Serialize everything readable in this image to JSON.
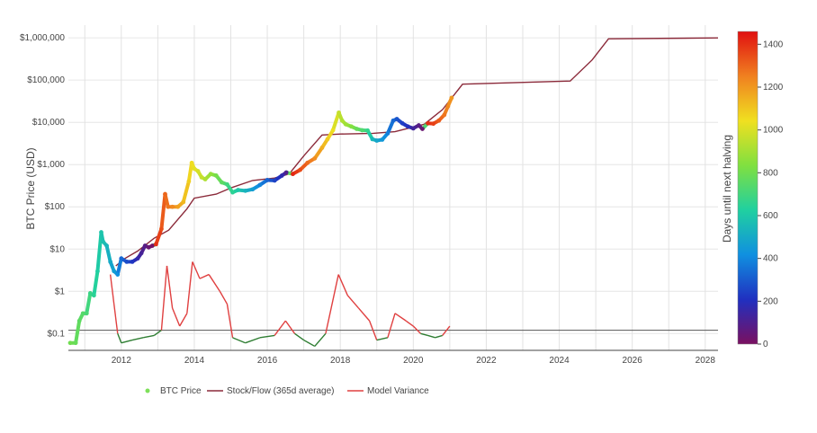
{
  "chart_data": {
    "type": "scatter",
    "title": "",
    "ylabel": "BTC Price (USD)",
    "xlabel": "",
    "y_scale": "log",
    "ylim": [
      0.04,
      2000000
    ],
    "xlim": [
      2010.55,
      2028.35
    ],
    "grid": true,
    "y_ticks": [
      {
        "value": 1000000,
        "label": "$1,000,000"
      },
      {
        "value": 100000,
        "label": "$100,000"
      },
      {
        "value": 10000,
        "label": "$10,000"
      },
      {
        "value": 1000,
        "label": "$1,000"
      },
      {
        "value": 100,
        "label": "$100"
      },
      {
        "value": 10,
        "label": "$10"
      },
      {
        "value": 1,
        "label": "$1"
      },
      {
        "value": 0.1,
        "label": "$0.1"
      }
    ],
    "x_ticks": [
      {
        "value": 2012,
        "label": "2012"
      },
      {
        "value": 2014,
        "label": "2014"
      },
      {
        "value": 2016,
        "label": "2016"
      },
      {
        "value": 2018,
        "label": "2018"
      },
      {
        "value": 2020,
        "label": "2020"
      },
      {
        "value": 2022,
        "label": "2022"
      },
      {
        "value": 2024,
        "label": "2024"
      },
      {
        "value": 2026,
        "label": "2026"
      },
      {
        "value": 2028,
        "label": "2028"
      }
    ],
    "legend_position": "bottom",
    "legend": [
      {
        "name": "BTC Price",
        "marker": "dot",
        "color": "#7ee05a"
      },
      {
        "name": "Stock/Flow (365d average)",
        "marker": "line",
        "color": "#8b2a3a"
      },
      {
        "name": "Model Variance",
        "marker": "line",
        "color": "#e04040"
      }
    ],
    "colorbar": {
      "title": "Days until next halving",
      "range": [
        0,
        1460
      ],
      "ticks": [
        {
          "value": 0,
          "label": "0"
        },
        {
          "value": 200,
          "label": "200"
        },
        {
          "value": 400,
          "label": "400"
        },
        {
          "value": 600,
          "label": "600"
        },
        {
          "value": 800,
          "label": "800"
        },
        {
          "value": 1000,
          "label": "1000"
        },
        {
          "value": 1200,
          "label": "1200"
        },
        {
          "value": 1400,
          "label": "1400"
        }
      ],
      "colorscale": [
        "#7a1060",
        "#2030c0",
        "#1090e0",
        "#20d0a0",
        "#80e040",
        "#f0e020",
        "#f08020",
        "#e01010"
      ]
    },
    "series": [
      {
        "name": "BTC Price",
        "color_by": "days_until_next_halving",
        "points": [
          {
            "x": 2010.6,
            "y": 0.06,
            "c": 800
          },
          {
            "x": 2010.75,
            "y": 0.06,
            "c": 780
          },
          {
            "x": 2010.85,
            "y": 0.2,
            "c": 760
          },
          {
            "x": 2010.95,
            "y": 0.3,
            "c": 740
          },
          {
            "x": 2011.05,
            "y": 0.3,
            "c": 720
          },
          {
            "x": 2011.15,
            "y": 0.9,
            "c": 680
          },
          {
            "x": 2011.25,
            "y": 0.8,
            "c": 650
          },
          {
            "x": 2011.35,
            "y": 3,
            "c": 620
          },
          {
            "x": 2011.45,
            "y": 25,
            "c": 590
          },
          {
            "x": 2011.5,
            "y": 15,
            "c": 570
          },
          {
            "x": 2011.6,
            "y": 12,
            "c": 540
          },
          {
            "x": 2011.7,
            "y": 5,
            "c": 500
          },
          {
            "x": 2011.8,
            "y": 3,
            "c": 460
          },
          {
            "x": 2011.9,
            "y": 2.5,
            "c": 420
          },
          {
            "x": 2012.0,
            "y": 6,
            "c": 330
          },
          {
            "x": 2012.15,
            "y": 5,
            "c": 270
          },
          {
            "x": 2012.3,
            "y": 5,
            "c": 220
          },
          {
            "x": 2012.45,
            "y": 6,
            "c": 160
          },
          {
            "x": 2012.55,
            "y": 8,
            "c": 120
          },
          {
            "x": 2012.65,
            "y": 12,
            "c": 80
          },
          {
            "x": 2012.75,
            "y": 11,
            "c": 40
          },
          {
            "x": 2012.85,
            "y": 12,
            "c": 10
          },
          {
            "x": 2012.95,
            "y": 13,
            "c": 1400
          },
          {
            "x": 2013.1,
            "y": 30,
            "c": 1340
          },
          {
            "x": 2013.2,
            "y": 200,
            "c": 1300
          },
          {
            "x": 2013.28,
            "y": 100,
            "c": 1270
          },
          {
            "x": 2013.4,
            "y": 100,
            "c": 1230
          },
          {
            "x": 2013.55,
            "y": 100,
            "c": 1180
          },
          {
            "x": 2013.7,
            "y": 130,
            "c": 1130
          },
          {
            "x": 2013.85,
            "y": 400,
            "c": 1080
          },
          {
            "x": 2013.93,
            "y": 1100,
            "c": 1050
          },
          {
            "x": 2014.0,
            "y": 800,
            "c": 1020
          },
          {
            "x": 2014.1,
            "y": 700,
            "c": 990
          },
          {
            "x": 2014.2,
            "y": 500,
            "c": 960
          },
          {
            "x": 2014.3,
            "y": 450,
            "c": 920
          },
          {
            "x": 2014.45,
            "y": 600,
            "c": 870
          },
          {
            "x": 2014.6,
            "y": 550,
            "c": 810
          },
          {
            "x": 2014.75,
            "y": 380,
            "c": 760
          },
          {
            "x": 2014.9,
            "y": 340,
            "c": 700
          },
          {
            "x": 2015.05,
            "y": 220,
            "c": 650
          },
          {
            "x": 2015.2,
            "y": 250,
            "c": 600
          },
          {
            "x": 2015.4,
            "y": 240,
            "c": 530
          },
          {
            "x": 2015.6,
            "y": 260,
            "c": 460
          },
          {
            "x": 2015.8,
            "y": 330,
            "c": 390
          },
          {
            "x": 2016.0,
            "y": 430,
            "c": 320
          },
          {
            "x": 2016.2,
            "y": 420,
            "c": 250
          },
          {
            "x": 2016.4,
            "y": 550,
            "c": 170
          },
          {
            "x": 2016.52,
            "y": 650,
            "c": 100
          },
          {
            "x": 2016.7,
            "y": 600,
            "c": 1420
          },
          {
            "x": 2016.9,
            "y": 750,
            "c": 1350
          },
          {
            "x": 2017.1,
            "y": 1100,
            "c": 1290
          },
          {
            "x": 2017.3,
            "y": 1400,
            "c": 1220
          },
          {
            "x": 2017.5,
            "y": 2500,
            "c": 1150
          },
          {
            "x": 2017.65,
            "y": 4000,
            "c": 1090
          },
          {
            "x": 2017.8,
            "y": 6500,
            "c": 1040
          },
          {
            "x": 2017.96,
            "y": 17000,
            "c": 960
          },
          {
            "x": 2018.05,
            "y": 11000,
            "c": 920
          },
          {
            "x": 2018.15,
            "y": 9000,
            "c": 890
          },
          {
            "x": 2018.3,
            "y": 8000,
            "c": 840
          },
          {
            "x": 2018.45,
            "y": 7000,
            "c": 780
          },
          {
            "x": 2018.6,
            "y": 6500,
            "c": 730
          },
          {
            "x": 2018.75,
            "y": 6400,
            "c": 670
          },
          {
            "x": 2018.88,
            "y": 4000,
            "c": 540
          },
          {
            "x": 2019.0,
            "y": 3700,
            "c": 490
          },
          {
            "x": 2019.15,
            "y": 3900,
            "c": 440
          },
          {
            "x": 2019.3,
            "y": 5500,
            "c": 380
          },
          {
            "x": 2019.45,
            "y": 11000,
            "c": 330
          },
          {
            "x": 2019.55,
            "y": 12000,
            "c": 290
          },
          {
            "x": 2019.7,
            "y": 9500,
            "c": 240
          },
          {
            "x": 2019.85,
            "y": 8000,
            "c": 200
          },
          {
            "x": 2020.0,
            "y": 7200,
            "c": 130
          },
          {
            "x": 2020.15,
            "y": 8500,
            "c": 80
          },
          {
            "x": 2020.25,
            "y": 7000,
            "c": 40
          },
          {
            "x": 2020.4,
            "y": 9500,
            "c": 1410
          },
          {
            "x": 2020.55,
            "y": 9300,
            "c": 1370
          },
          {
            "x": 2020.7,
            "y": 11000,
            "c": 1320
          },
          {
            "x": 2020.85,
            "y": 15000,
            "c": 1270
          },
          {
            "x": 2020.95,
            "y": 24000,
            "c": 1230
          },
          {
            "x": 2021.05,
            "y": 38000,
            "c": 1200
          }
        ]
      },
      {
        "name": "Stock/Flow (365d average)",
        "color": "#8b2a3a",
        "points": [
          {
            "x": 2011.85,
            "y": 4
          },
          {
            "x": 2012.1,
            "y": 6
          },
          {
            "x": 2012.45,
            "y": 9
          },
          {
            "x": 2012.9,
            "y": 18
          },
          {
            "x": 2013.3,
            "y": 28
          },
          {
            "x": 2013.8,
            "y": 90
          },
          {
            "x": 2014.0,
            "y": 160
          },
          {
            "x": 2014.6,
            "y": 200
          },
          {
            "x": 2015.0,
            "y": 280
          },
          {
            "x": 2015.6,
            "y": 420
          },
          {
            "x": 2016.2,
            "y": 480
          },
          {
            "x": 2016.6,
            "y": 600
          },
          {
            "x": 2017.0,
            "y": 1600
          },
          {
            "x": 2017.5,
            "y": 5000
          },
          {
            "x": 2018.0,
            "y": 5300
          },
          {
            "x": 2018.9,
            "y": 5500
          },
          {
            "x": 2019.5,
            "y": 6000
          },
          {
            "x": 2020.3,
            "y": 9000
          },
          {
            "x": 2020.8,
            "y": 20000
          },
          {
            "x": 2021.35,
            "y": 80000
          },
          {
            "x": 2024.3,
            "y": 95000
          },
          {
            "x": 2024.9,
            "y": 300000
          },
          {
            "x": 2025.35,
            "y": 950000
          },
          {
            "x": 2028.35,
            "y": 1000000
          }
        ]
      },
      {
        "name": "Model Variance",
        "color": "#e04040",
        "baseline": 0.12,
        "points": [
          {
            "x": 2011.7,
            "y": 2.5
          },
          {
            "x": 2011.8,
            "y": 0.5
          },
          {
            "x": 2011.9,
            "y": 0.1
          },
          {
            "x": 2012.0,
            "y": 0.06
          },
          {
            "x": 2012.3,
            "y": 0.07
          },
          {
            "x": 2012.6,
            "y": 0.08
          },
          {
            "x": 2012.9,
            "y": 0.09
          },
          {
            "x": 2013.1,
            "y": 0.12
          },
          {
            "x": 2013.25,
            "y": 4.0
          },
          {
            "x": 2013.4,
            "y": 0.4
          },
          {
            "x": 2013.6,
            "y": 0.15
          },
          {
            "x": 2013.8,
            "y": 0.3
          },
          {
            "x": 2013.95,
            "y": 5.0
          },
          {
            "x": 2014.15,
            "y": 2.0
          },
          {
            "x": 2014.4,
            "y": 2.5
          },
          {
            "x": 2014.7,
            "y": 1.0
          },
          {
            "x": 2014.9,
            "y": 0.5
          },
          {
            "x": 2015.05,
            "y": 0.08
          },
          {
            "x": 2015.4,
            "y": 0.06
          },
          {
            "x": 2015.8,
            "y": 0.08
          },
          {
            "x": 2016.2,
            "y": 0.09
          },
          {
            "x": 2016.5,
            "y": 0.2
          },
          {
            "x": 2016.75,
            "y": 0.1
          },
          {
            "x": 2017.0,
            "y": 0.07
          },
          {
            "x": 2017.3,
            "y": 0.05
          },
          {
            "x": 2017.6,
            "y": 0.1
          },
          {
            "x": 2017.95,
            "y": 2.5
          },
          {
            "x": 2018.2,
            "y": 0.8
          },
          {
            "x": 2018.5,
            "y": 0.4
          },
          {
            "x": 2018.8,
            "y": 0.2
          },
          {
            "x": 2019.0,
            "y": 0.07
          },
          {
            "x": 2019.3,
            "y": 0.08
          },
          {
            "x": 2019.5,
            "y": 0.3
          },
          {
            "x": 2019.8,
            "y": 0.2
          },
          {
            "x": 2020.0,
            "y": 0.15
          },
          {
            "x": 2020.2,
            "y": 0.1
          },
          {
            "x": 2020.4,
            "y": 0.09
          },
          {
            "x": 2020.6,
            "y": 0.08
          },
          {
            "x": 2020.8,
            "y": 0.09
          },
          {
            "x": 2021.0,
            "y": 0.15
          }
        ]
      }
    ]
  }
}
